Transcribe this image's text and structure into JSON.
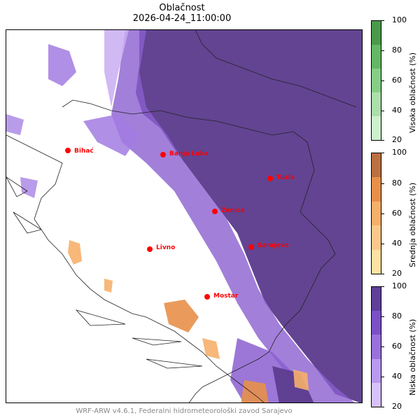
{
  "title": "Oblačnost",
  "timestamp": "2026-04-24_11:00:00",
  "footer": "WRF-ARW v4.6.1, Federalni hidrometeorološki zavod Sarajevo",
  "cities": [
    {
      "name": "Bihać"
    },
    {
      "name": "Banja Luka"
    },
    {
      "name": "Tuzla"
    },
    {
      "name": "Zenica"
    },
    {
      "name": "Livno"
    },
    {
      "name": "Sarajevo"
    },
    {
      "name": "Mostar"
    }
  ],
  "colorbars": [
    {
      "label": "Visoka oblačnost (%)",
      "ticks": [
        "100",
        "80",
        "60",
        "40",
        "20"
      ],
      "colors": [
        "#4a9a4a",
        "#63b863",
        "#85cf85",
        "#acdfac",
        "#cdf0cd"
      ]
    },
    {
      "label": "Srednja oblačnost (%)",
      "ticks": [
        "100",
        "80",
        "60",
        "40",
        "20"
      ],
      "colors": [
        "#bb7040",
        "#e8904a",
        "#f6b06a",
        "#fac98a",
        "#fde2a2"
      ]
    },
    {
      "label": "Niska oblačnost (%)",
      "ticks": [
        "100",
        "80",
        "60",
        "40",
        "20"
      ],
      "colors": [
        "#5f3f99",
        "#7b50c7",
        "#9a70dc",
        "#b99af0",
        "#d6c2f8"
      ]
    }
  ]
}
